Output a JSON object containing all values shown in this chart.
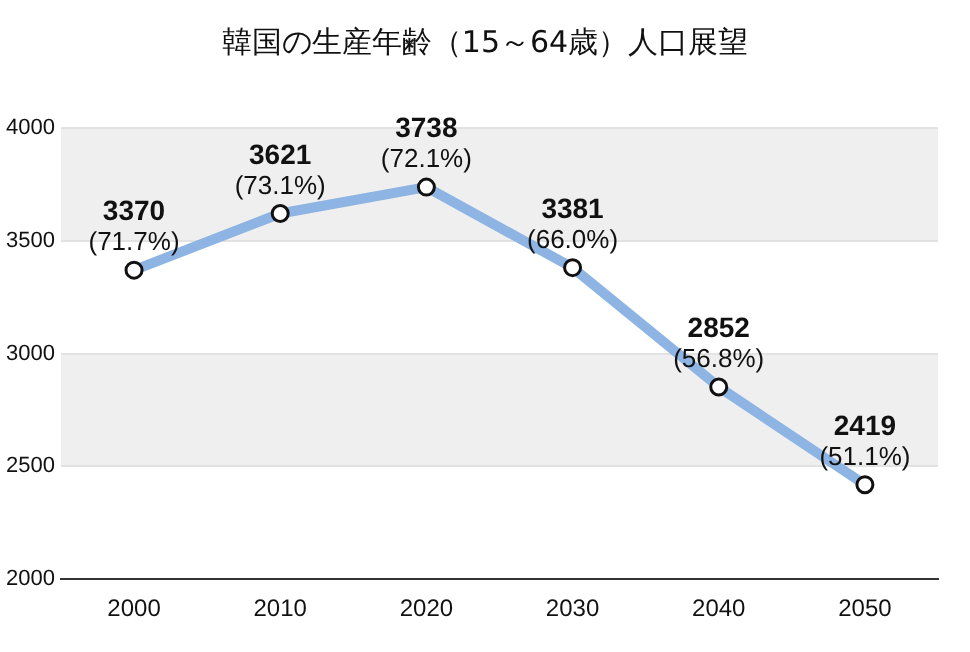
{
  "chart_data": {
    "type": "line",
    "title": "韓国の生産年齢（15～64歳）人口展望",
    "categories": [
      "2000",
      "2010",
      "2020",
      "2030",
      "2040",
      "2050"
    ],
    "series": [
      {
        "color": "#8db4e2",
        "values": [
          3370,
          3621,
          3738,
          3381,
          2852,
          2419
        ],
        "value_labels": [
          "3370\n(71.7%)",
          "3621\n(73.1%)",
          "3738\n(72.1%)",
          "3381\n(66.0%)",
          "2852\n(56.8%)",
          "2419\n(51.1%)"
        ]
      }
    ],
    "ylim": [
      2000,
      4000
    ],
    "yticks": [
      2000,
      2500,
      3000,
      3500,
      4000
    ],
    "grid": "y",
    "marker": "circle",
    "line_style": "solid",
    "legend": false
  }
}
